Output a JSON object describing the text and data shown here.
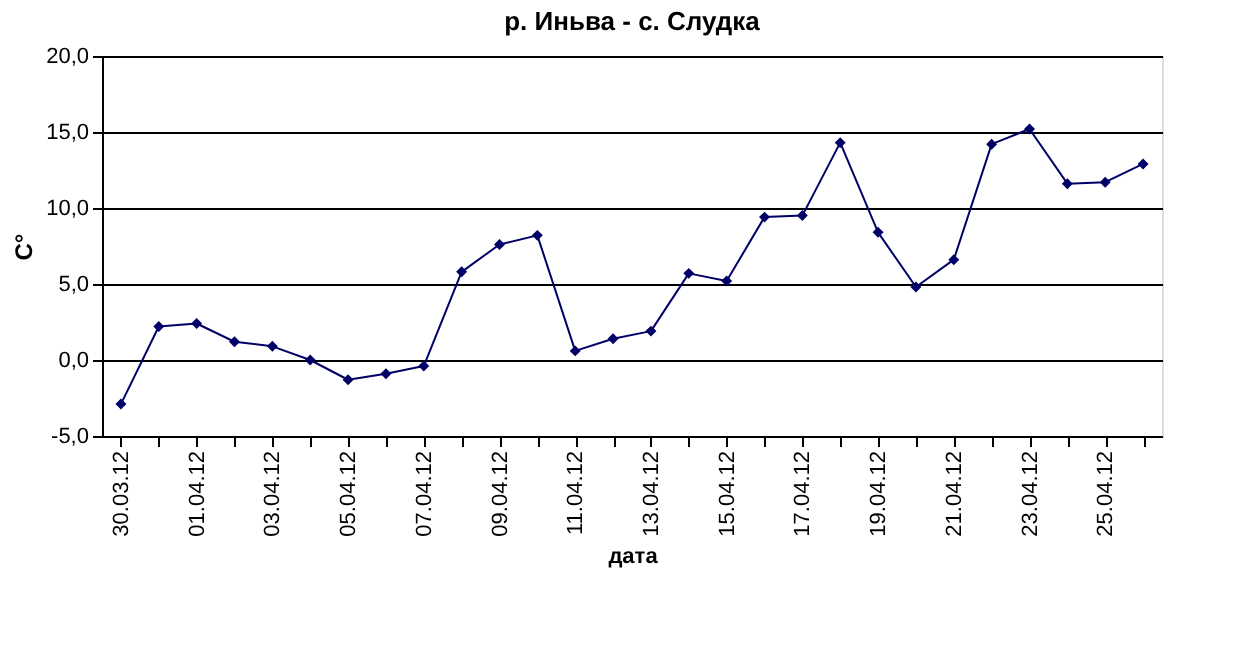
{
  "chart_data": {
    "type": "line",
    "title": "р. Иньва - с. Слудка",
    "xlabel": "дата",
    "ylabel": "С°",
    "categories": [
      "30.03.12",
      null,
      "01.04.12",
      null,
      "03.04.12",
      null,
      "05.04.12",
      null,
      "07.04.12",
      null,
      "09.04.12",
      null,
      "11.04.12",
      null,
      "13.04.12",
      null,
      "15.04.12",
      null,
      "17.04.12",
      null,
      "19.04.12",
      null,
      "21.04.12",
      null,
      "23.04.12",
      null,
      "25.04.12",
      null
    ],
    "series": [
      {
        "color": "#000066",
        "values": [
          -2.9,
          2.2,
          2.4,
          1.2,
          0.9,
          0.0,
          -1.3,
          -0.9,
          -0.4,
          5.8,
          7.6,
          8.2,
          0.6,
          1.4,
          1.9,
          5.7,
          5.2,
          9.4,
          9.5,
          14.3,
          8.4,
          4.8,
          6.6,
          14.2,
          15.2,
          11.6,
          11.7,
          12.9
        ]
      }
    ],
    "ylim": [
      -5,
      20
    ],
    "yticks": [
      {
        "value": -5,
        "label": "-5,0"
      },
      {
        "value": 0,
        "label": "0,0"
      },
      {
        "value": 5,
        "label": "5,0"
      },
      {
        "value": 10,
        "label": "10,0"
      },
      {
        "value": 15,
        "label": "15,0"
      },
      {
        "value": 20,
        "label": "20,0"
      }
    ],
    "grid": "y",
    "marker": "diamond",
    "line_style": "solid"
  }
}
